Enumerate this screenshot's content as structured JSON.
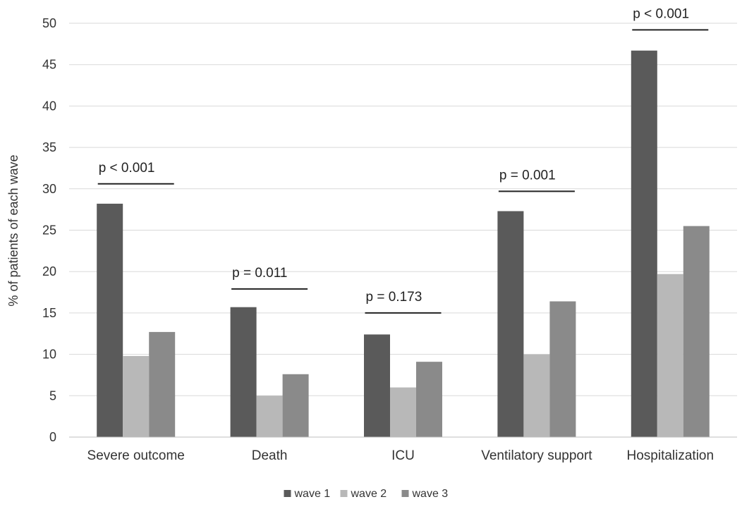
{
  "chart_data": {
    "type": "bar",
    "title": "",
    "xlabel": "",
    "ylabel": "% of patients of each wave",
    "ylim": [
      0,
      50
    ],
    "yticks": [
      0,
      5,
      10,
      15,
      20,
      25,
      30,
      35,
      40,
      45,
      50
    ],
    "grid": true,
    "legend_position": "bottom",
    "categories": [
      "Severe outcome",
      "Death",
      "ICU",
      "Ventilatory support",
      "Hospitalization"
    ],
    "series": [
      {
        "name": "wave 1",
        "color": "#5a5a5a",
        "values": [
          28.2,
          15.7,
          12.4,
          27.3,
          46.7
        ]
      },
      {
        "name": "wave 2",
        "color": "#b8b8b8",
        "values": [
          9.8,
          5.0,
          6.0,
          10.0,
          19.7
        ]
      },
      {
        "name": "wave 3",
        "color": "#8a8a8a",
        "values": [
          12.7,
          7.6,
          9.1,
          16.4,
          25.5
        ]
      }
    ],
    "annotations": [
      {
        "category": "Severe outcome",
        "text": "p < 0.001",
        "y": 30.6
      },
      {
        "category": "Death",
        "text": "p = 0.011",
        "y": 17.9
      },
      {
        "category": "ICU",
        "text": "p = 0.173",
        "y": 15.0
      },
      {
        "category": "Ventilatory support",
        "text": "p = 0.001",
        "y": 29.7
      },
      {
        "category": "Hospitalization",
        "text": "p < 0.001",
        "y": 49.2
      }
    ]
  }
}
